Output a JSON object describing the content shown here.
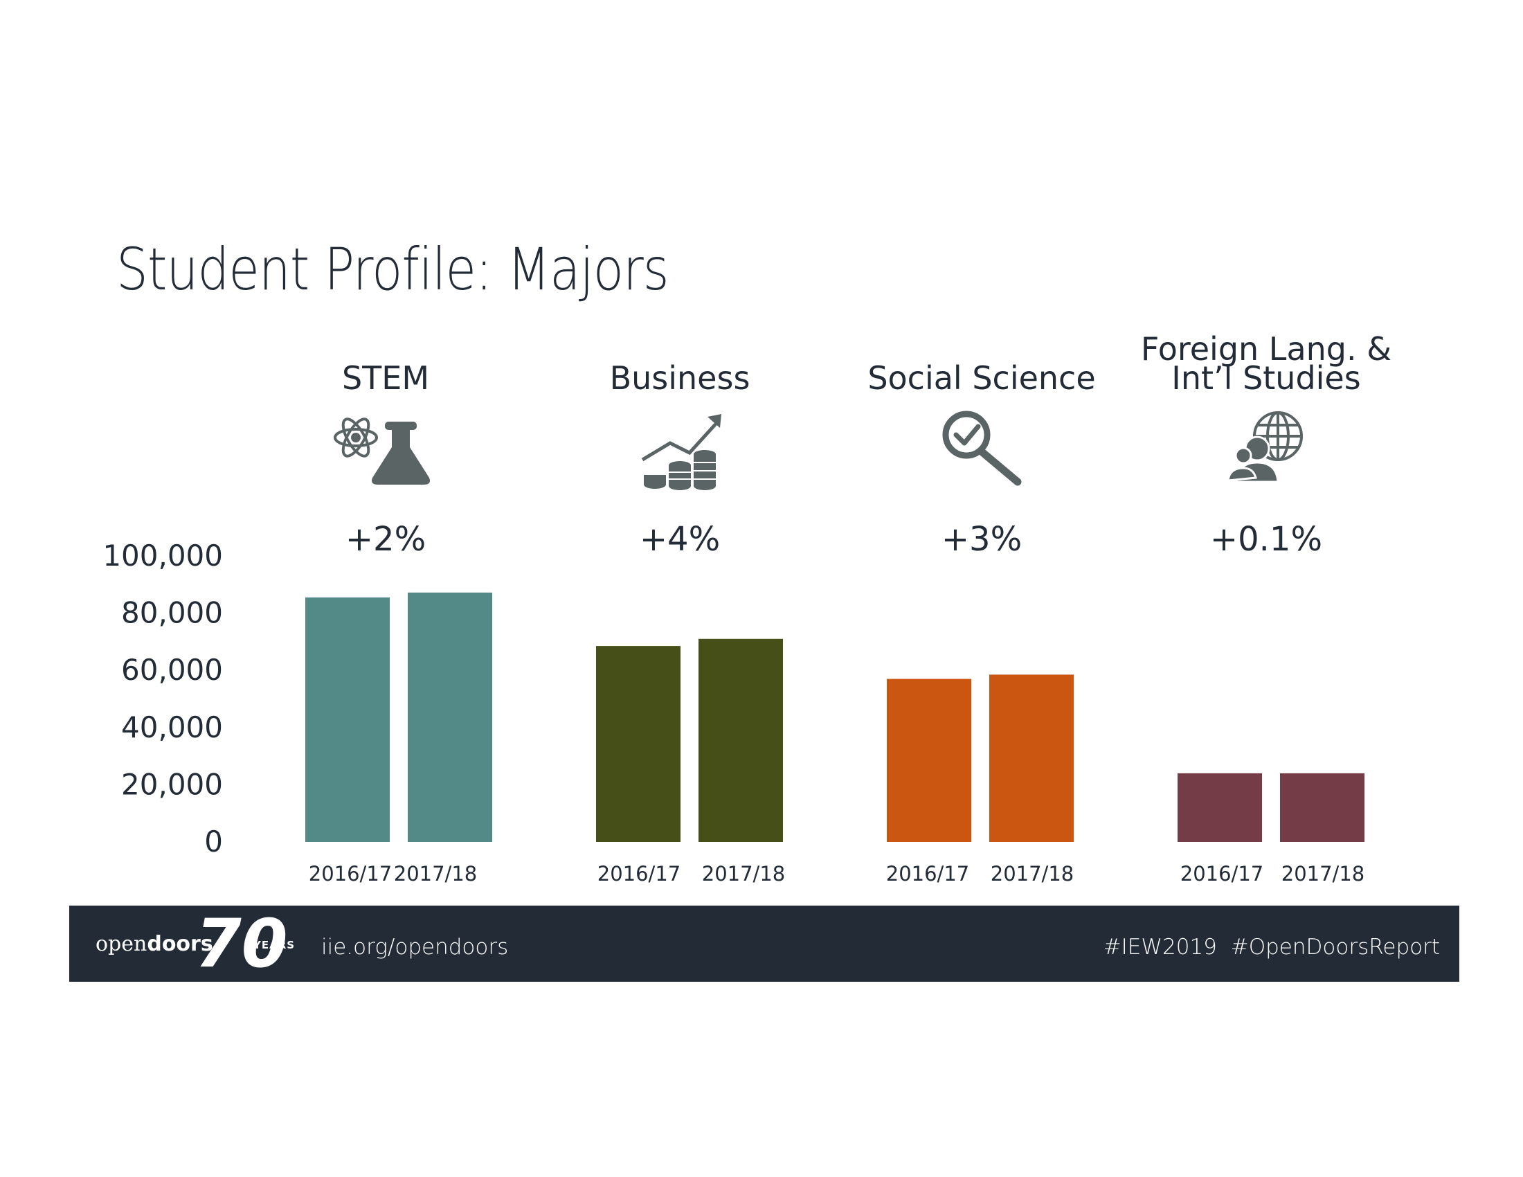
{
  "title": "Student Profile:  Majors",
  "chart_data": {
    "type": "bar",
    "title": "Student Profile:  Majors",
    "ylim": [
      0,
      100000
    ],
    "yticks": [
      "100,000",
      "80,000",
      "60,000",
      "40,000",
      "20,000",
      "0"
    ],
    "ytick_values": [
      100000,
      80000,
      60000,
      40000,
      20000,
      0
    ],
    "grid": false,
    "groups": [
      {
        "name_lines": [
          "STEM"
        ],
        "icon": "atom-flask-icon",
        "change": "+2%",
        "color": "#538a88",
        "categories": [
          "2016/17",
          "2017/18"
        ],
        "values": [
          85500,
          87200
        ]
      },
      {
        "name_lines": [
          "Business"
        ],
        "icon": "chart-coins-icon",
        "change": "+4%",
        "color": "#454f17",
        "categories": [
          "2016/17",
          "2017/18"
        ],
        "values": [
          68500,
          71000
        ]
      },
      {
        "name_lines": [
          "Social Science"
        ],
        "icon": "magnifier-check-icon",
        "change": "+3%",
        "color": "#cb5612",
        "categories": [
          "2016/17",
          "2017/18"
        ],
        "values": [
          57000,
          58500
        ]
      },
      {
        "name_lines": [
          "Foreign Lang. &",
          "Int’l Studies"
        ],
        "icon": "globe-people-icon",
        "change": "+0.1%",
        "color": "#733c46",
        "categories": [
          "2016/17",
          "2017/18"
        ],
        "values": [
          24000,
          24000
        ]
      }
    ]
  },
  "footer": {
    "logo_text_light": "open",
    "logo_text_bold": "doors",
    "logo_number": "70",
    "logo_years": "YEARS",
    "url": "iie.org/opendoors",
    "hashtags": "#IEW2019  #OpenDoorsReport"
  }
}
